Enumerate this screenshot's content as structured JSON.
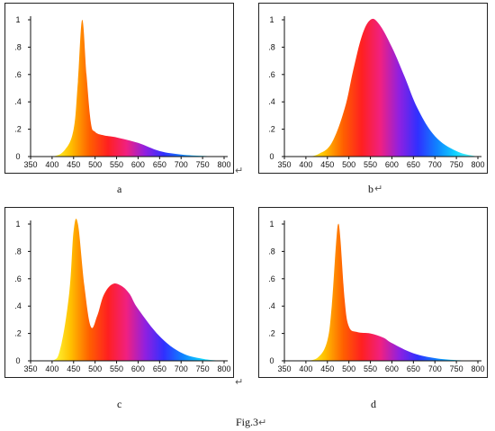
{
  "figure_caption": "Fig.3",
  "return_mark": "↵",
  "colors": {
    "spectrum": [
      "#ffff40",
      "#ffc000",
      "#ff6000",
      "#ff2020",
      "#f02080",
      "#9020e0",
      "#3030ff",
      "#1080ff",
      "#10d0ff",
      "#60ffff"
    ],
    "axis": "#111111",
    "frame": "#222222"
  },
  "chart_data": [
    {
      "id": "a",
      "caption": "a",
      "type": "area",
      "x": [
        350,
        400,
        430,
        450,
        460,
        470,
        480,
        490,
        500,
        520,
        550,
        600,
        650,
        700,
        750,
        800
      ],
      "y": [
        0.0,
        0.0,
        0.05,
        0.2,
        0.55,
        1.0,
        0.6,
        0.25,
        0.18,
        0.155,
        0.14,
        0.1,
        0.04,
        0.015,
        0.005,
        0.0
      ],
      "xlim": [
        350,
        800
      ],
      "ylim": [
        0,
        1
      ],
      "xticks": [
        "350",
        "400",
        "450",
        "500",
        "550",
        "600",
        "650",
        "700",
        "750",
        "800"
      ],
      "yticks": [
        "0",
        ".2",
        ".4",
        ".6",
        ".8",
        "1"
      ]
    },
    {
      "id": "b",
      "caption": "b",
      "type": "area",
      "x": [
        350,
        400,
        430,
        460,
        490,
        510,
        530,
        550,
        570,
        600,
        630,
        660,
        700,
        750,
        800
      ],
      "y": [
        0.0,
        0.0,
        0.02,
        0.1,
        0.35,
        0.63,
        0.88,
        1.0,
        0.97,
        0.8,
        0.58,
        0.35,
        0.15,
        0.04,
        0.0
      ],
      "xlim": [
        350,
        800
      ],
      "ylim": [
        0,
        1
      ],
      "xticks": [
        "350",
        "400",
        "450",
        "500",
        "550",
        "600",
        "650",
        "700",
        "750",
        "800"
      ],
      "yticks": [
        "0",
        ".2",
        ".4",
        ".6",
        ".8",
        "1"
      ]
    },
    {
      "id": "c",
      "caption": "c",
      "type": "area",
      "x": [
        350,
        400,
        420,
        440,
        450,
        460,
        475,
        490,
        505,
        520,
        540,
        560,
        580,
        600,
        650,
        700,
        750,
        800
      ],
      "y": [
        0.0,
        0.0,
        0.1,
        0.5,
        0.95,
        1.0,
        0.55,
        0.25,
        0.33,
        0.48,
        0.56,
        0.55,
        0.49,
        0.38,
        0.18,
        0.06,
        0.015,
        0.0
      ],
      "xlim": [
        350,
        800
      ],
      "ylim": [
        0,
        1
      ],
      "xticks": [
        "350",
        "400",
        "450",
        "500",
        "550",
        "600",
        "650",
        "700",
        "750",
        "800"
      ],
      "yticks": [
        "0",
        ".2",
        ".4",
        ".6",
        ".8",
        "1"
      ]
    },
    {
      "id": "d",
      "caption": "d",
      "type": "area",
      "x": [
        350,
        400,
        430,
        450,
        460,
        470,
        475,
        480,
        490,
        500,
        520,
        550,
        580,
        600,
        650,
        700,
        750,
        800
      ],
      "y": [
        0.0,
        0.0,
        0.03,
        0.15,
        0.4,
        0.85,
        1.0,
        0.9,
        0.45,
        0.25,
        0.21,
        0.2,
        0.17,
        0.13,
        0.055,
        0.02,
        0.005,
        0.0
      ],
      "xlim": [
        350,
        800
      ],
      "ylim": [
        0,
        1
      ],
      "xticks": [
        "350",
        "400",
        "450",
        "500",
        "550",
        "600",
        "650",
        "700",
        "750",
        "800"
      ],
      "yticks": [
        "0",
        ".2",
        ".4",
        ".6",
        ".8",
        "1"
      ]
    }
  ]
}
